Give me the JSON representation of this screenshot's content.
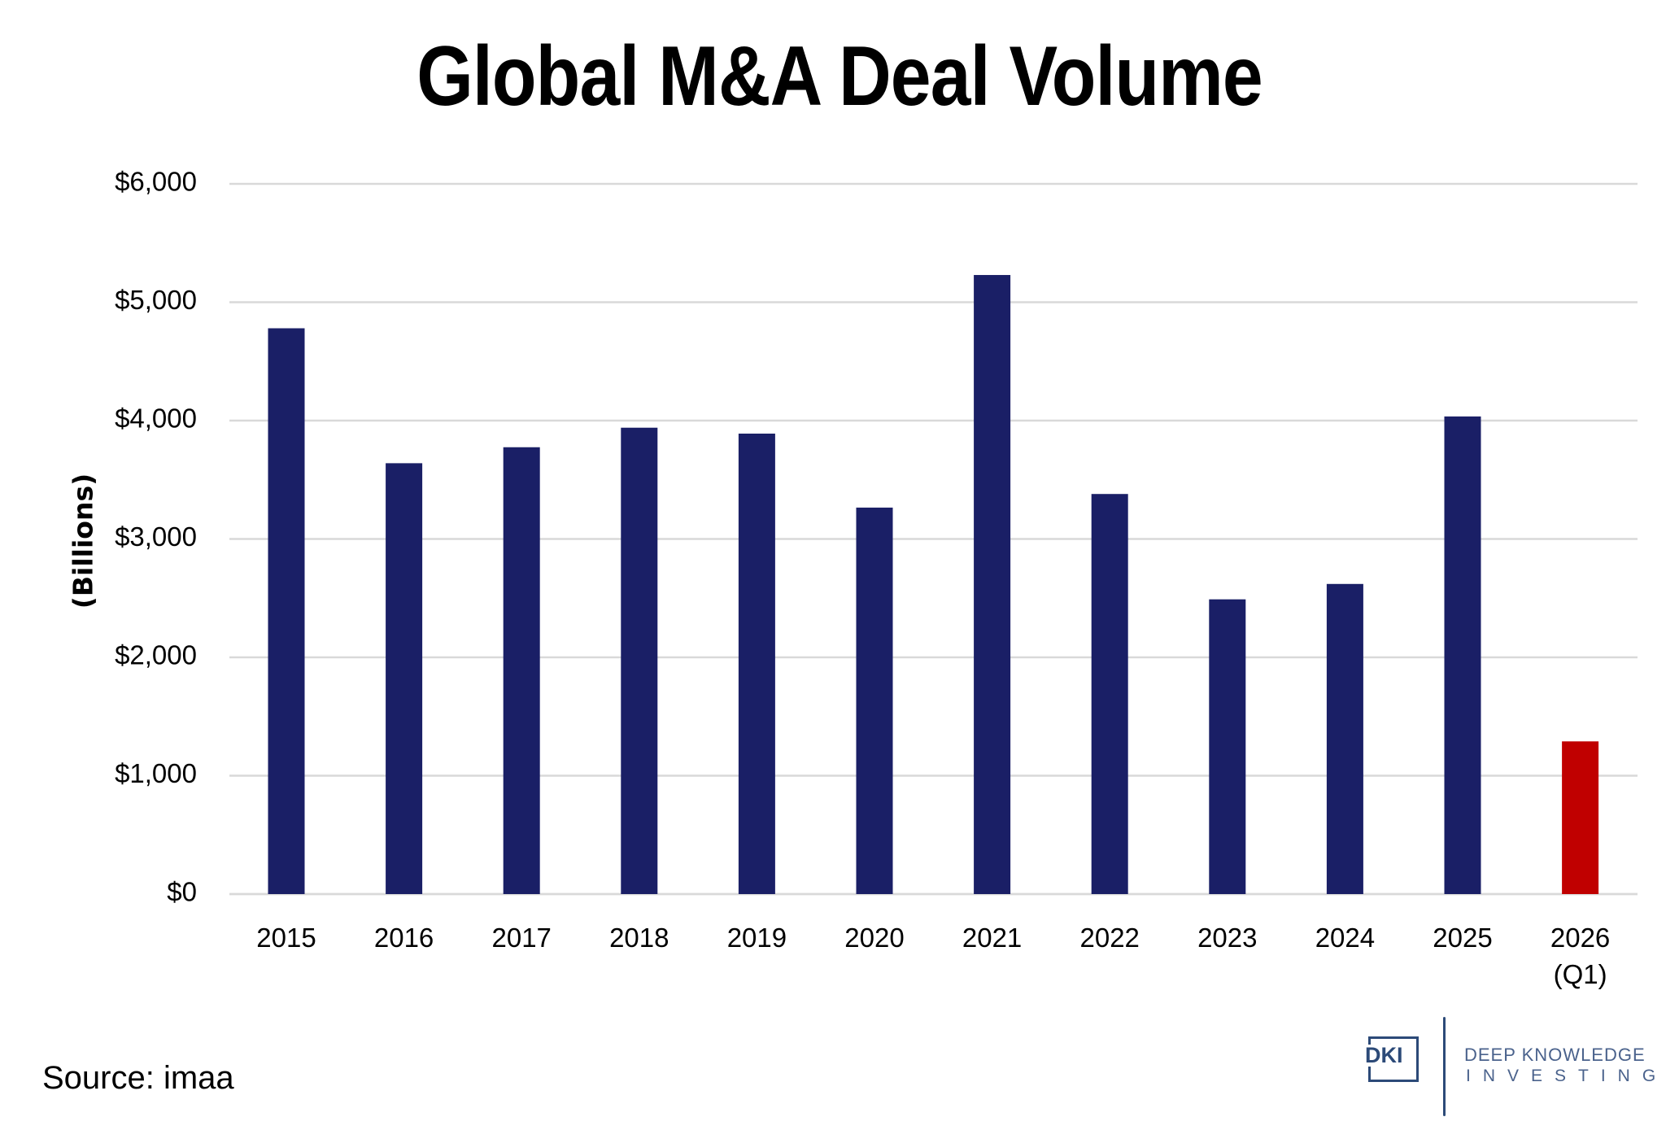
{
  "chart_data": {
    "type": "bar",
    "title": "Global M&A Deal Volume",
    "xlabel": "",
    "ylabel": "(Billions)",
    "ylim": [
      0,
      6000
    ],
    "yticks": [
      0,
      1000,
      2000,
      3000,
      4000,
      5000,
      6000
    ],
    "ytick_labels": [
      "$0",
      "$1,000",
      "$2,000",
      "$3,000",
      "$4,000",
      "$5,000",
      "$6,000"
    ],
    "grid": true,
    "legend": "none",
    "categories": [
      [
        "2015"
      ],
      [
        "2016"
      ],
      [
        "2017"
      ],
      [
        "2018"
      ],
      [
        "2019"
      ],
      [
        "2020"
      ],
      [
        "2021"
      ],
      [
        "2022"
      ],
      [
        "2023"
      ],
      [
        "2024"
      ],
      [
        "2025"
      ],
      [
        "2026",
        "(Q1)"
      ]
    ],
    "values": [
      4780,
      3640,
      3775,
      3940,
      3890,
      3265,
      5230,
      3380,
      2490,
      2620,
      4035,
      1290
    ],
    "bar_colors": [
      "#1a1f66",
      "#1a1f66",
      "#1a1f66",
      "#1a1f66",
      "#1a1f66",
      "#1a1f66",
      "#1a1f66",
      "#1a1f66",
      "#1a1f66",
      "#1a1f66",
      "#1a1f66",
      "#c00000"
    ],
    "gridline_color": "#d9d9d9"
  },
  "footer": {
    "source": "Source: imaa"
  },
  "logo": {
    "mark": "DKI",
    "line1": "DEEP KNOWLEDGE",
    "line2": "INVESTING",
    "color": "#2c4a78"
  }
}
